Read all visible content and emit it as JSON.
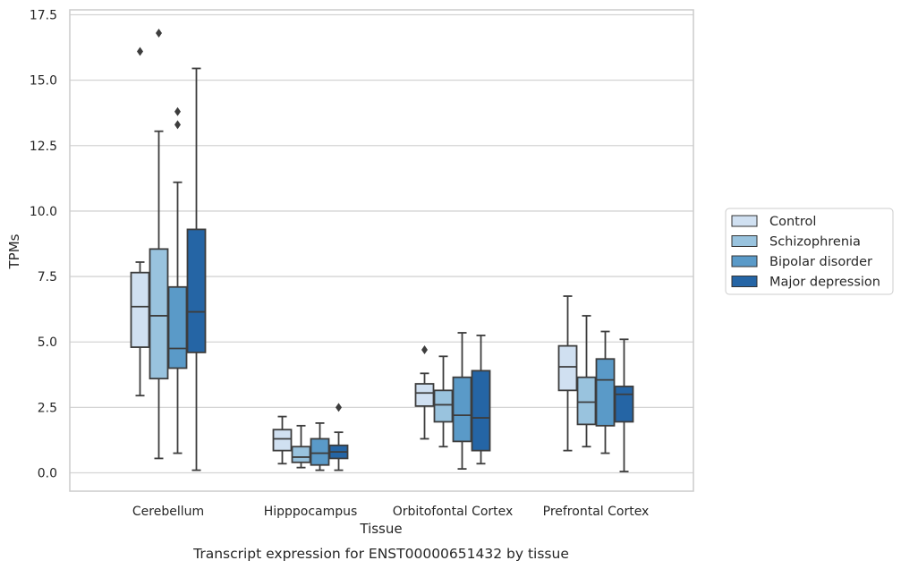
{
  "chart_data": {
    "type": "box",
    "title": "",
    "caption": "Transcript expression for ENST00000651432 by tissue",
    "xlabel": "Tissue",
    "ylabel": "TPMs",
    "ylim": [
      -0.7,
      17.6
    ],
    "yticks": [
      "0.0",
      "2.5",
      "5.0",
      "7.5",
      "10.0",
      "12.5",
      "15.0",
      "17.5"
    ],
    "ytick_values": [
      0,
      2.5,
      5,
      7.5,
      10,
      12.5,
      15,
      17.5
    ],
    "grid": "horizontal",
    "legend_position": "right",
    "categories": [
      "Cerebellum",
      "Hipppocampus",
      "Orbitofontal Cortex",
      "Prefrontal Cortex"
    ],
    "series": [
      {
        "name": "Control",
        "color": "#d0e0f1",
        "boxes": [
          {
            "whisker_low": 2.95,
            "q1": 4.8,
            "median": 6.35,
            "q3": 7.65,
            "whisker_high": 8.05,
            "outliers": [
              16.1
            ]
          },
          {
            "whisker_low": 0.35,
            "q1": 0.85,
            "median": 1.3,
            "q3": 1.65,
            "whisker_high": 2.15,
            "outliers": []
          },
          {
            "whisker_low": 1.3,
            "q1": 2.55,
            "median": 3.05,
            "q3": 3.4,
            "whisker_high": 3.8,
            "outliers": [
              4.7
            ]
          },
          {
            "whisker_low": 0.85,
            "q1": 3.15,
            "median": 4.05,
            "q3": 4.85,
            "whisker_high": 6.75,
            "outliers": []
          }
        ]
      },
      {
        "name": "Schizophrenia",
        "color": "#99c3de",
        "boxes": [
          {
            "whisker_low": 0.55,
            "q1": 3.6,
            "median": 6.0,
            "q3": 8.55,
            "whisker_high": 13.05,
            "outliers": [
              16.8
            ]
          },
          {
            "whisker_low": 0.2,
            "q1": 0.4,
            "median": 0.6,
            "q3": 1.0,
            "whisker_high": 1.8,
            "outliers": []
          },
          {
            "whisker_low": 1.0,
            "q1": 1.95,
            "median": 2.6,
            "q3": 3.15,
            "whisker_high": 4.45,
            "outliers": []
          },
          {
            "whisker_low": 1.0,
            "q1": 1.85,
            "median": 2.7,
            "q3": 3.65,
            "whisker_high": 6.0,
            "outliers": []
          }
        ]
      },
      {
        "name": "Bipolar disorder",
        "color": "#5a9ac8",
        "boxes": [
          {
            "whisker_low": 0.75,
            "q1": 4.0,
            "median": 4.75,
            "q3": 7.1,
            "whisker_high": 11.1,
            "outliers": [
              13.3,
              13.8
            ]
          },
          {
            "whisker_low": 0.1,
            "q1": 0.3,
            "median": 0.75,
            "q3": 1.3,
            "whisker_high": 1.9,
            "outliers": []
          },
          {
            "whisker_low": 0.15,
            "q1": 1.2,
            "median": 2.2,
            "q3": 3.65,
            "whisker_high": 5.35,
            "outliers": []
          },
          {
            "whisker_low": 0.75,
            "q1": 1.8,
            "median": 3.55,
            "q3": 4.35,
            "whisker_high": 5.4,
            "outliers": []
          }
        ]
      },
      {
        "name": "Major depression",
        "color": "#2565a5",
        "boxes": [
          {
            "whisker_low": 0.1,
            "q1": 4.6,
            "median": 6.15,
            "q3": 9.3,
            "whisker_high": 15.45,
            "outliers": []
          },
          {
            "whisker_low": 0.1,
            "q1": 0.55,
            "median": 0.8,
            "q3": 1.05,
            "whisker_high": 1.55,
            "outliers": [
              2.5
            ]
          },
          {
            "whisker_low": 0.35,
            "q1": 0.85,
            "median": 2.1,
            "q3": 3.9,
            "whisker_high": 5.25,
            "outliers": []
          },
          {
            "whisker_low": 0.05,
            "q1": 1.95,
            "median": 3.0,
            "q3": 3.3,
            "whisker_high": 5.1,
            "outliers": []
          }
        ]
      }
    ]
  }
}
